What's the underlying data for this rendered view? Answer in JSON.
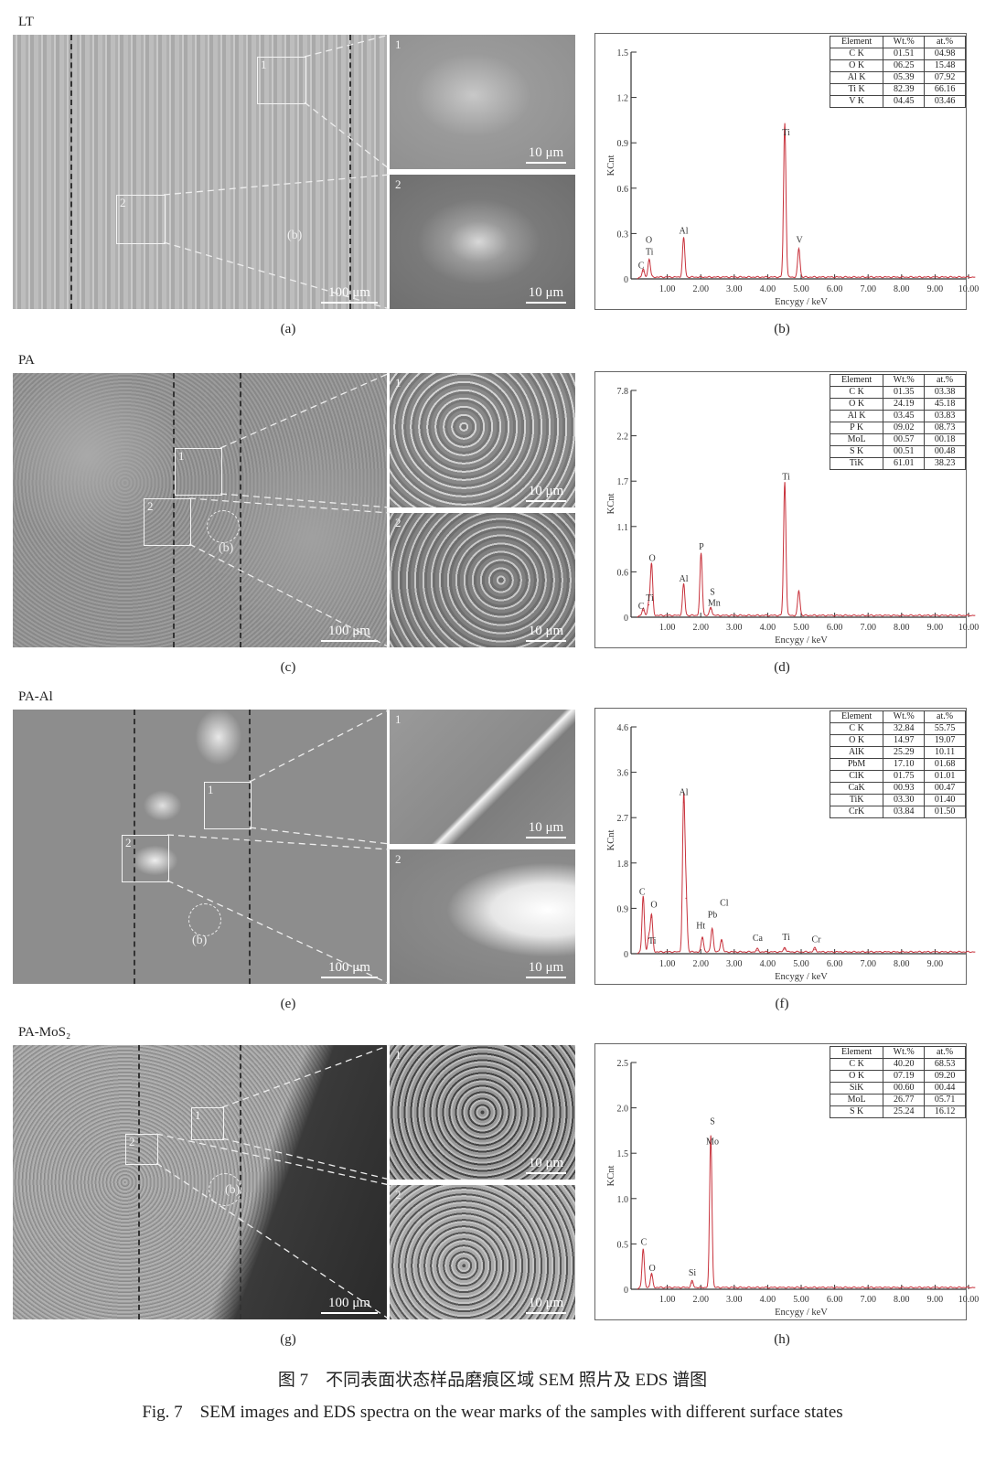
{
  "figure": {
    "caption_cn": "图 7　不同表面状态样品磨痕区域 SEM 照片及 EDS 谱图",
    "caption_en": "Fig. 7　SEM images and EDS spectra on the wear marks of the samples with different surface states"
  },
  "panels": [
    {
      "label": "LT",
      "sem_caption": "(a)",
      "eds_caption": "(b)",
      "scale_main": "100 μm",
      "scale_inset": "10 μm",
      "region_labels": [
        "1",
        "2"
      ],
      "circle_label": "(b)"
    },
    {
      "label": "PA",
      "sem_caption": "(c)",
      "eds_caption": "(d)",
      "scale_main": "100 μm",
      "scale_inset": "10 μm",
      "region_labels": [
        "1",
        "2"
      ],
      "circle_label": "(b)"
    },
    {
      "label": "PA-Al",
      "sem_caption": "(e)",
      "eds_caption": "(f)",
      "scale_main": "100 μm",
      "scale_inset": "10 μm",
      "region_labels": [
        "1",
        "2"
      ],
      "circle_label": "(b)"
    },
    {
      "label": "PA-MoS₂",
      "sem_caption": "(g)",
      "eds_caption": "(h)",
      "scale_main": "100 μm",
      "scale_inset": "10 μm",
      "region_labels": [
        "1",
        "2"
      ],
      "circle_label": "(b)"
    }
  ],
  "chart_data": [
    {
      "type": "line",
      "id": "b",
      "xlabel": "Encygy / keV",
      "ylabel": "KCnt",
      "line_color": "#c8323c",
      "xticks": [
        "1.00",
        "2.00",
        "3.00",
        "4.00",
        "5.00",
        "6.00",
        "7.00",
        "8.00",
        "9.00",
        "10.00"
      ],
      "yticks": [
        "0",
        "0.3",
        "0.6",
        "0.9",
        "1.2",
        "1.5"
      ],
      "peaks": [
        [
          0.28,
          0.05
        ],
        [
          0.46,
          0.12
        ],
        [
          1.49,
          0.26
        ],
        [
          4.51,
          1.02
        ],
        [
          4.93,
          0.19
        ]
      ],
      "peak_labels": [
        {
          "text": "C",
          "x": 0.22,
          "y": 0.07
        },
        {
          "text": "O",
          "x": 0.45,
          "y": 0.24
        },
        {
          "text": "Ti",
          "x": 0.47,
          "y": 0.16
        },
        {
          "text": "Al",
          "x": 1.49,
          "y": 0.3
        },
        {
          "text": "Ti",
          "x": 4.55,
          "y": 0.95
        },
        {
          "text": "V",
          "x": 4.95,
          "y": 0.24
        }
      ],
      "table": {
        "header": [
          "Element",
          "Wt.%",
          "at.%"
        ],
        "rows": [
          [
            "C K",
            "01.51",
            "04.98"
          ],
          [
            "O K",
            "06.25",
            "15.48"
          ],
          [
            "Al K",
            "05.39",
            "07.92"
          ],
          [
            "Ti K",
            "82.39",
            "66.16"
          ],
          [
            "V K",
            "04.45",
            "03.46"
          ]
        ]
      }
    },
    {
      "type": "line",
      "id": "d",
      "xlabel": "Encygy / keV",
      "ylabel": "KCnt",
      "line_color": "#c8323c",
      "xticks": [
        "1.00",
        "2.00",
        "3.00",
        "4.00",
        "5.00",
        "6.00",
        "7.00",
        "8.00",
        "9.00",
        "10.00"
      ],
      "yticks": [
        "0",
        "0.6",
        "1.1",
        "1.7",
        "2.2",
        "7.8"
      ],
      "peaks": [
        [
          0.28,
          0.08
        ],
        [
          0.45,
          0.15
        ],
        [
          0.53,
          0.62
        ],
        [
          1.49,
          0.38
        ],
        [
          2.01,
          0.75
        ],
        [
          2.3,
          0.1
        ],
        [
          4.51,
          1.62
        ],
        [
          4.93,
          0.3
        ]
      ],
      "peak_labels": [
        {
          "text": "C",
          "x": 0.22,
          "y": 0.1
        },
        {
          "text": "Ti",
          "x": 0.48,
          "y": 0.2
        },
        {
          "text": "O",
          "x": 0.55,
          "y": 0.68
        },
        {
          "text": "Al",
          "x": 1.49,
          "y": 0.43
        },
        {
          "text": "P",
          "x": 2.02,
          "y": 0.82
        },
        {
          "text": "S",
          "x": 2.35,
          "y": 0.27
        },
        {
          "text": "Mn",
          "x": 2.4,
          "y": 0.14
        },
        {
          "text": "Ti",
          "x": 4.55,
          "y": 1.67
        }
      ],
      "table": {
        "header": [
          "Element",
          "Wt.%",
          "at.%"
        ],
        "rows": [
          [
            "C K",
            "01.35",
            "03.38"
          ],
          [
            "O K",
            "24.19",
            "45.18"
          ],
          [
            "Al K",
            "03.45",
            "03.83"
          ],
          [
            "P K",
            "09.02",
            "08.73"
          ],
          [
            "MoL",
            "00.57",
            "00.18"
          ],
          [
            "S K",
            "00.51",
            "00.48"
          ],
          [
            "TiK",
            "61.01",
            "38.23"
          ]
        ]
      }
    },
    {
      "type": "line",
      "id": "f",
      "xlabel": "Encygy / keV",
      "ylabel": "KCnt",
      "line_color": "#c8323c",
      "xticks": [
        "1.00",
        "2.00",
        "3.00",
        "4.00",
        "5.00",
        "6.00",
        "7.00",
        "8.00",
        "9.00"
      ],
      "yticks": [
        "0",
        "0.9",
        "1.8",
        "2.7",
        "3.6",
        "4.6"
      ],
      "peaks": [
        [
          0.28,
          1.1
        ],
        [
          0.45,
          0.3
        ],
        [
          0.53,
          0.72
        ],
        [
          1.49,
          3.0
        ],
        [
          1.56,
          1.1
        ],
        [
          2.05,
          0.3
        ],
        [
          2.34,
          0.48
        ],
        [
          2.62,
          0.25
        ],
        [
          3.69,
          0.06
        ],
        [
          4.51,
          0.09
        ],
        [
          5.41,
          0.08
        ]
      ],
      "peak_labels": [
        {
          "text": "C",
          "x": 0.25,
          "y": 1.17
        },
        {
          "text": "O",
          "x": 0.6,
          "y": 0.92
        },
        {
          "text": "Ti",
          "x": 0.55,
          "y": 0.2
        },
        {
          "text": "Al",
          "x": 1.49,
          "y": 3.15
        },
        {
          "text": "Ht",
          "x": 2.0,
          "y": 0.5
        },
        {
          "text": "Pb",
          "x": 2.35,
          "y": 0.72
        },
        {
          "text": "Cl",
          "x": 2.7,
          "y": 0.95
        },
        {
          "text": "Ca",
          "x": 3.7,
          "y": 0.25
        },
        {
          "text": "Ti",
          "x": 4.55,
          "y": 0.27
        },
        {
          "text": "Cr",
          "x": 5.45,
          "y": 0.23
        }
      ],
      "table": {
        "header": [
          "Element",
          "Wt.%",
          "at.%"
        ],
        "rows": [
          [
            "C K",
            "32.84",
            "55.75"
          ],
          [
            "O K",
            "14.97",
            "19.07"
          ],
          [
            "AlK",
            "25.29",
            "10.11"
          ],
          [
            "PbM",
            "17.10",
            "01.68"
          ],
          [
            "ClK",
            "01.75",
            "01.01"
          ],
          [
            "CaK",
            "00.93",
            "00.47"
          ],
          [
            "TiK",
            "03.30",
            "01.40"
          ],
          [
            "CrK",
            "03.84",
            "01.50"
          ]
        ]
      }
    },
    {
      "type": "line",
      "id": "h",
      "xlabel": "Encygy / keV",
      "ylabel": "KCnt",
      "line_color": "#c8323c",
      "xticks": [
        "1.00",
        "2.00",
        "3.00",
        "4.00",
        "5.00",
        "6.00",
        "7.00",
        "8.00",
        "9.00",
        "10.00"
      ],
      "yticks": [
        "0",
        "0.5",
        "1.0",
        "1.5",
        "2.0",
        "2.5"
      ],
      "peaks": [
        [
          0.28,
          0.42
        ],
        [
          0.53,
          0.15
        ],
        [
          1.74,
          0.07
        ],
        [
          2.3,
          1.68
        ]
      ],
      "peak_labels": [
        {
          "text": "C",
          "x": 0.3,
          "y": 0.49
        },
        {
          "text": "O",
          "x": 0.55,
          "y": 0.2
        },
        {
          "text": "Si",
          "x": 1.75,
          "y": 0.15
        },
        {
          "text": "S",
          "x": 2.35,
          "y": 1.82
        },
        {
          "text": "Mo",
          "x": 2.35,
          "y": 1.6
        }
      ],
      "table": {
        "header": [
          "Element",
          "Wt.%",
          "at.%"
        ],
        "rows": [
          [
            "C K",
            "40.20",
            "68.53"
          ],
          [
            "O K",
            "07.19",
            "09.20"
          ],
          [
            "SiK",
            "00.60",
            "00.44"
          ],
          [
            "MoL",
            "26.77",
            "05.71"
          ],
          [
            "S K",
            "25.24",
            "16.12"
          ]
        ]
      }
    }
  ]
}
